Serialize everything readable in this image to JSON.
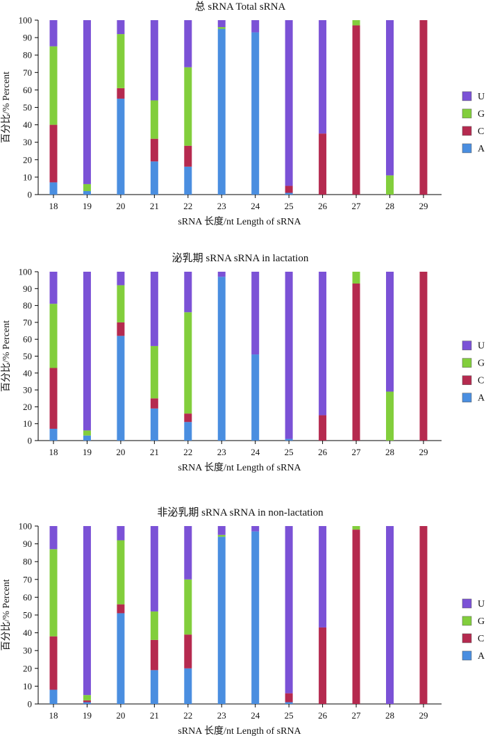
{
  "colors": {
    "U": "#7B52D6",
    "G": "#82CE3C",
    "C": "#B52A4F",
    "A": "#4A8EE0"
  },
  "chart_data": [
    {
      "type": "bar",
      "stacked": true,
      "title": "总 sRNA Total sRNA",
      "xlabel": "sRNA 长度/nt Length of sRNA",
      "ylabel": "百分比/% Percent",
      "ylim": [
        0,
        100
      ],
      "yticks": [
        "0",
        "10",
        "20",
        "30",
        "40",
        "50",
        "60",
        "70",
        "80",
        "90",
        "100"
      ],
      "categories": [
        "18",
        "19",
        "20",
        "21",
        "22",
        "23",
        "24",
        "25",
        "26",
        "27",
        "28",
        "29"
      ],
      "legend": [
        "U",
        "G",
        "C",
        "A"
      ],
      "series": [
        {
          "name": "A",
          "values": [
            7,
            2,
            55,
            19,
            16,
            95,
            93,
            1,
            0,
            0,
            0,
            0
          ]
        },
        {
          "name": "C",
          "values": [
            33,
            0,
            6,
            13,
            12,
            0,
            0,
            4,
            35,
            97,
            0,
            100
          ]
        },
        {
          "name": "G",
          "values": [
            45,
            4,
            31,
            22,
            45,
            1,
            0,
            0,
            0,
            3,
            11,
            0
          ]
        },
        {
          "name": "U",
          "values": [
            15,
            94,
            8,
            46,
            27,
            4,
            7,
            95,
            65,
            0,
            89,
            0
          ]
        }
      ]
    },
    {
      "type": "bar",
      "stacked": true,
      "title": "泌乳期 sRNA   sRNA in lactation",
      "xlabel": "sRNA 长度/nt Length of sRNA",
      "ylabel": "百分比/% Percent",
      "ylim": [
        0,
        100
      ],
      "yticks": [
        "0",
        "10",
        "20",
        "30",
        "40",
        "50",
        "60",
        "70",
        "80",
        "90",
        "100"
      ],
      "categories": [
        "18",
        "19",
        "20",
        "21",
        "22",
        "23",
        "24",
        "25",
        "26",
        "27",
        "28",
        "29"
      ],
      "legend": [
        "U",
        "G",
        "C",
        "A"
      ],
      "series": [
        {
          "name": "A",
          "values": [
            7,
            3,
            62,
            19,
            11,
            97,
            51,
            1,
            0,
            0,
            0,
            0
          ]
        },
        {
          "name": "C",
          "values": [
            36,
            0,
            8,
            6,
            5,
            0,
            0,
            0,
            15,
            93,
            0,
            100
          ]
        },
        {
          "name": "G",
          "values": [
            38,
            3,
            22,
            31,
            60,
            0,
            0,
            0,
            0,
            7,
            29,
            0
          ]
        },
        {
          "name": "U",
          "values": [
            19,
            94,
            8,
            44,
            24,
            3,
            49,
            99,
            85,
            0,
            71,
            0
          ]
        }
      ]
    },
    {
      "type": "bar",
      "stacked": true,
      "title": "非泌乳期 sRNA   sRNA in non-lactation",
      "xlabel": "sRNA 长度/nt Length of sRNA",
      "ylabel": "百分比/% Percent",
      "ylim": [
        0,
        100
      ],
      "yticks": [
        "0",
        "10",
        "20",
        "30",
        "40",
        "50",
        "60",
        "70",
        "80",
        "90",
        "100"
      ],
      "categories": [
        "18",
        "19",
        "20",
        "21",
        "22",
        "23",
        "24",
        "25",
        "26",
        "27",
        "28",
        "29"
      ],
      "legend": [
        "U",
        "G",
        "C",
        "A"
      ],
      "series": [
        {
          "name": "A",
          "values": [
            8,
            1,
            51,
            19,
            20,
            94,
            97,
            1,
            0,
            0,
            0,
            0
          ]
        },
        {
          "name": "C",
          "values": [
            30,
            1,
            5,
            17,
            19,
            0,
            0,
            5,
            43,
            98,
            0,
            100
          ]
        },
        {
          "name": "G",
          "values": [
            49,
            3,
            36,
            16,
            31,
            1,
            0,
            0,
            0,
            2,
            0,
            0
          ]
        },
        {
          "name": "U",
          "values": [
            13,
            95,
            8,
            48,
            30,
            5,
            3,
            94,
            57,
            0,
            100,
            0
          ]
        }
      ]
    }
  ]
}
